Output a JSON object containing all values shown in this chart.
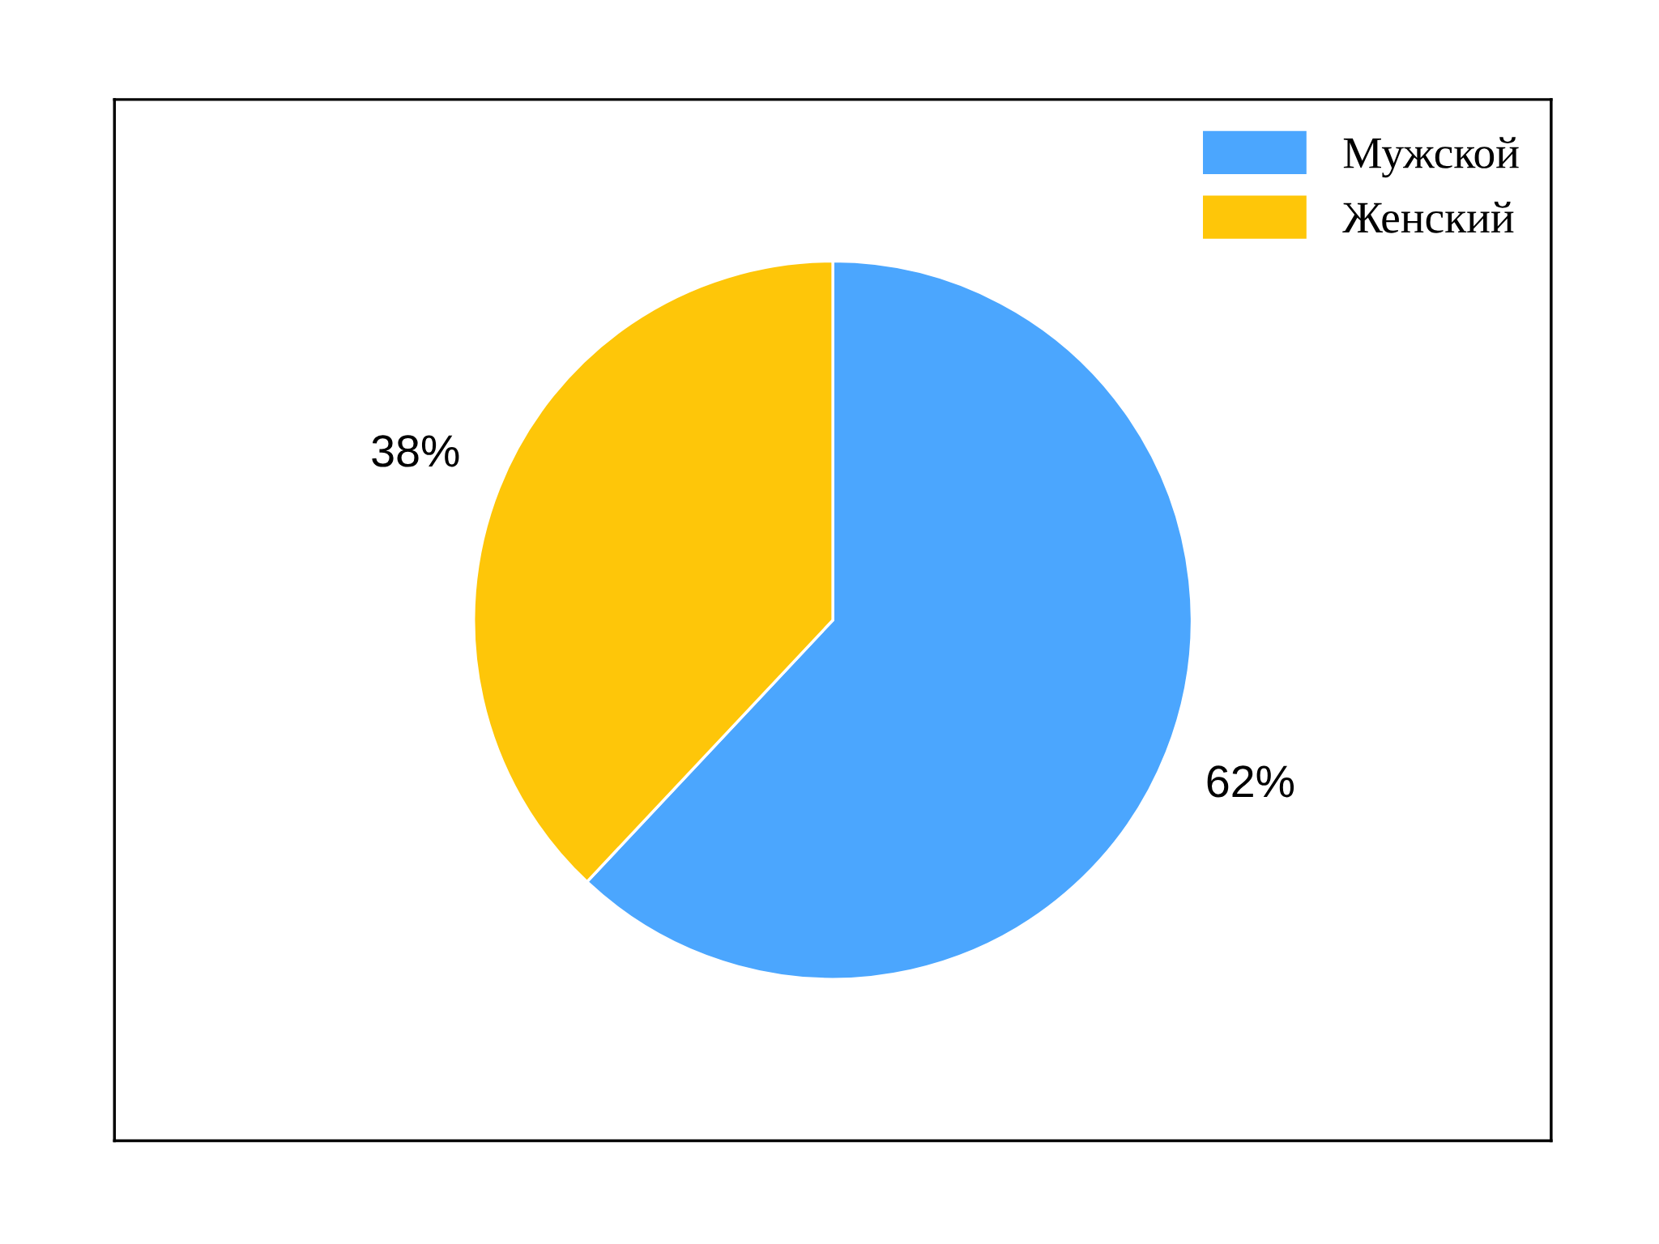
{
  "chart_data": {
    "type": "pie",
    "categories": [
      "Мужской",
      "Женский"
    ],
    "values": [
      62,
      38
    ],
    "colors": [
      "#4ba6fe",
      "#fec609"
    ],
    "value_labels": [
      "62%",
      "38%"
    ],
    "legend": "top right"
  }
}
